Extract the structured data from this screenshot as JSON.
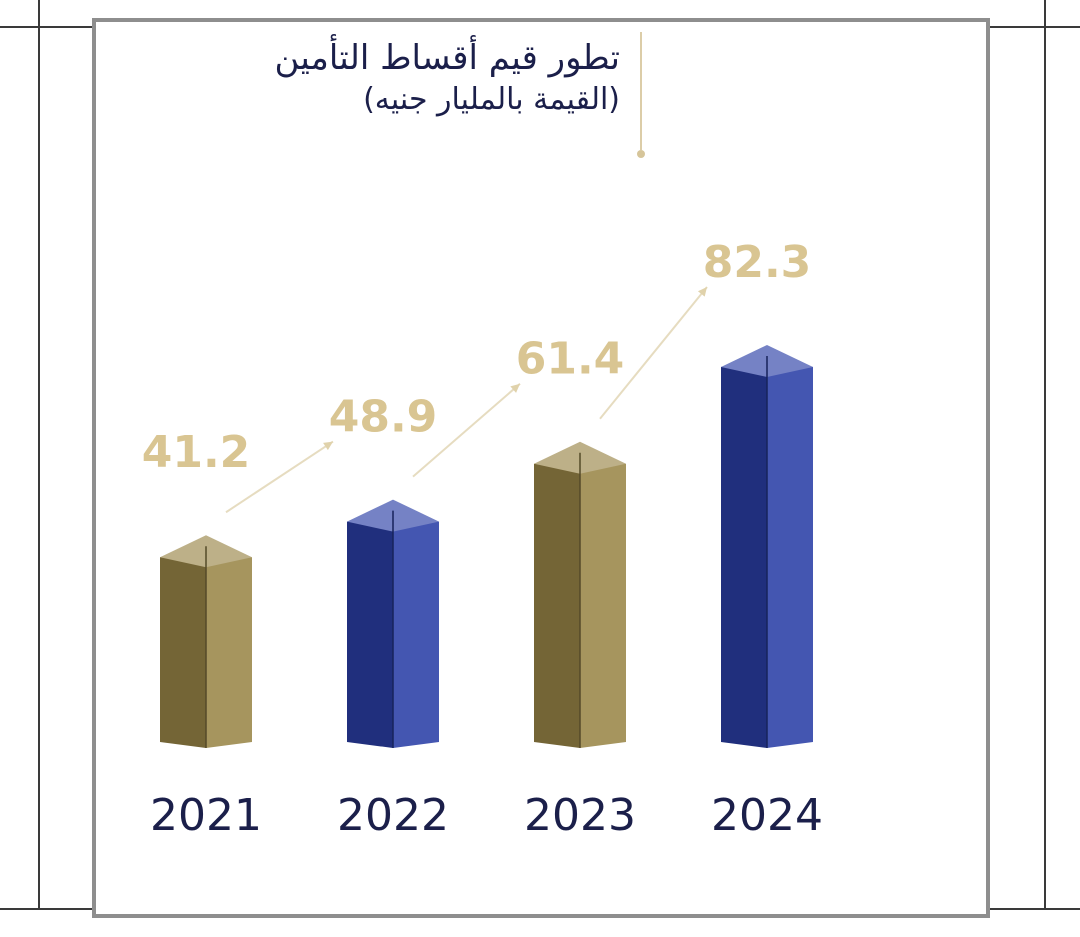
{
  "chart_data": {
    "type": "bar",
    "title": "تطور  قيم أقساط التأمين",
    "subtitle": "(القيمة بالمليار جنيه)",
    "categories": [
      "2021",
      "2022",
      "2023",
      "2024"
    ],
    "values": [
      41.2,
      48.9,
      61.4,
      82.3
    ],
    "value_labels": [
      "41.2",
      "48.9",
      "61.4",
      "82.3"
    ],
    "bar_colors": [
      "#9a8648",
      "#2a3fa6",
      "#9a8648",
      "#2a3fa6"
    ],
    "label_color": "#d9c592",
    "axis_color": "#c9b27a",
    "trend_arrows": true,
    "grid": false,
    "legend": "none"
  }
}
